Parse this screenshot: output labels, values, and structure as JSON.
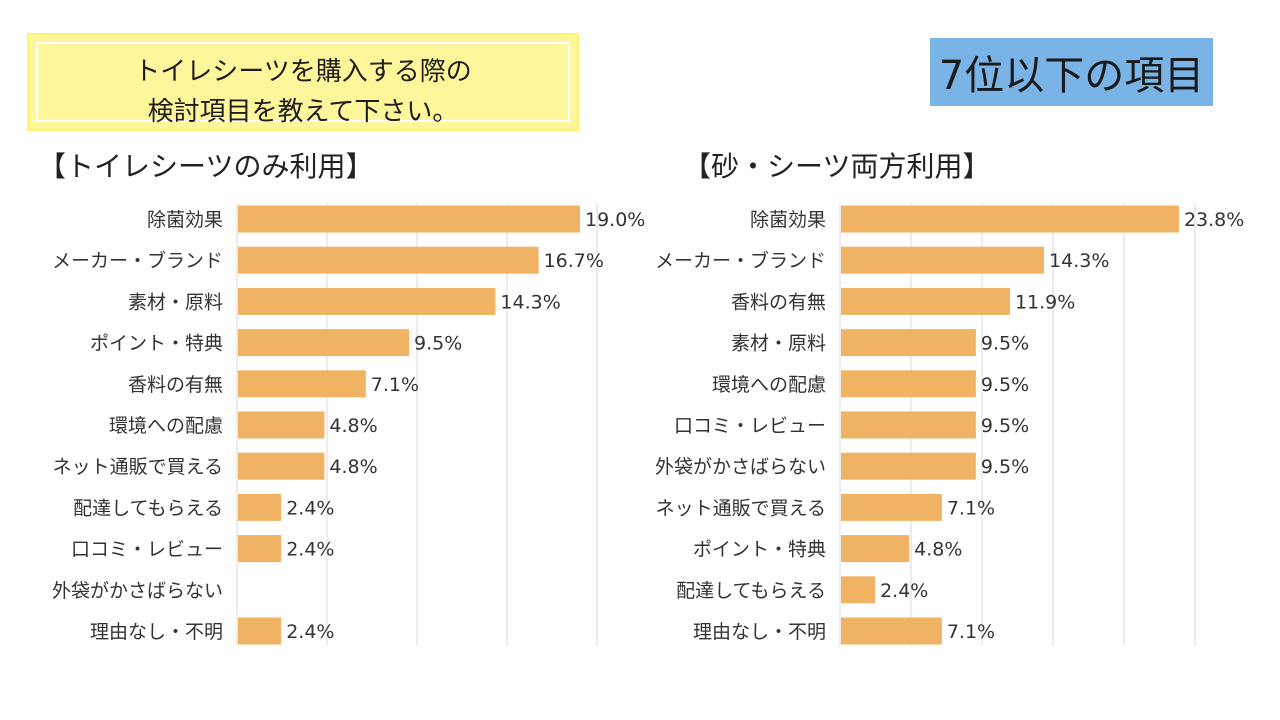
{
  "question": {
    "line1": "トイレシーツを購入する際の",
    "line2": "検討項目を教えて下さい。"
  },
  "badge": "7位以下の項目",
  "colors": {
    "bar": "#f0b263",
    "grid": "#d9d9d9",
    "question_bg": "#fff59a",
    "badge_bg": "#7ab3e6"
  },
  "chart_data": [
    {
      "type": "bar",
      "orientation": "horizontal",
      "title": "【トイレシーツのみ利用】",
      "categories": [
        "除菌効果",
        "メーカー・ブランド",
        "素材・原料",
        "ポイント・特典",
        "香料の有無",
        "環境への配慮",
        "ネット通販で買える",
        "配達してもらえる",
        "口コミ・レビュー",
        "外袋がかさばらない",
        "理由なし・不明"
      ],
      "values": [
        19.0,
        16.7,
        14.3,
        9.5,
        7.1,
        4.8,
        4.8,
        2.4,
        2.4,
        null,
        2.4
      ],
      "value_labels": [
        "19.0%",
        "16.7%",
        "14.3%",
        "9.5%",
        "7.1%",
        "4.8%",
        "4.8%",
        "2.4%",
        "2.4%",
        "",
        "2.4%"
      ],
      "xlim": [
        0,
        20
      ],
      "grid_step": 5,
      "grid": true
    },
    {
      "type": "bar",
      "orientation": "horizontal",
      "title": "【砂・シーツ両方利用】",
      "categories": [
        "除菌効果",
        "メーカー・ブランド",
        "香料の有無",
        "素材・原料",
        "環境への配慮",
        "口コミ・レビュー",
        "外袋がかさばらない",
        "ネット通販で買える",
        "ポイント・特典",
        "配達してもらえる",
        "理由なし・不明"
      ],
      "values": [
        23.8,
        14.3,
        11.9,
        9.5,
        9.5,
        9.5,
        9.5,
        7.1,
        4.8,
        2.4,
        7.1
      ],
      "value_labels": [
        "23.8%",
        "14.3%",
        "11.9%",
        "9.5%",
        "9.5%",
        "9.5%",
        "9.5%",
        "7.1%",
        "4.8%",
        "2.4%",
        "7.1%"
      ],
      "xlim": [
        0,
        25
      ],
      "grid_step": 5,
      "grid": true
    }
  ]
}
